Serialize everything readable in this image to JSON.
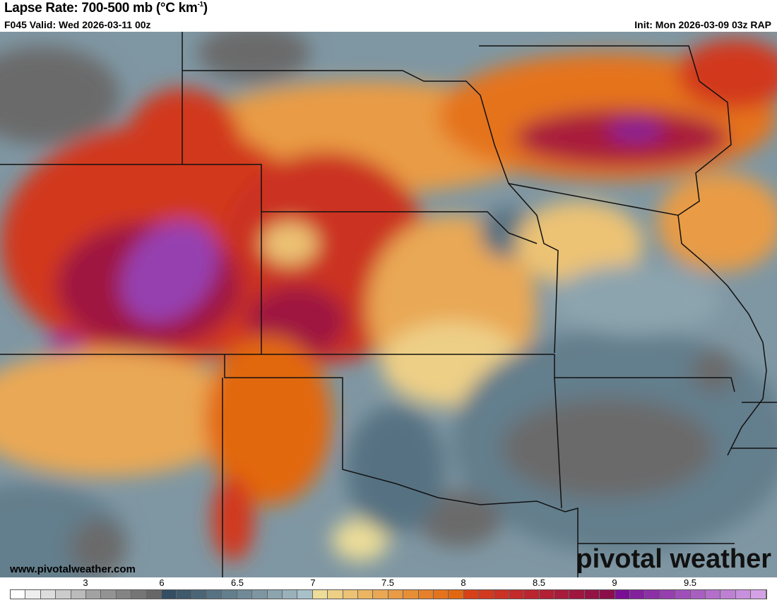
{
  "header": {
    "title": "Lapse Rate: 700-500 mb (°C km",
    "title_sup": "-1",
    "title_end": ")",
    "valid": "F045 Valid: Wed 2026-03-11 00z",
    "init": "Init: Mon 2026-03-09 03z RAP"
  },
  "footer": {
    "url": "www.pivotalweather.com",
    "logo": "pivotal weather"
  },
  "colorbar": {
    "ticks": [
      "3",
      "6",
      "6.5",
      "7",
      "7.5",
      "8",
      "8.5",
      "9",
      "9.5"
    ],
    "colors": [
      "#ffffff",
      "#eeeeee",
      "#dddddd",
      "#cccccc",
      "#bbbbbb",
      "#a2a2a2",
      "#939393",
      "#848484",
      "#757575",
      "#676767",
      "#344e63",
      "#3f596d",
      "#4b6577",
      "#577282",
      "#637e8c",
      "#708a97",
      "#7d96a2",
      "#8ca4ae",
      "#9ab1ba",
      "#a8c1c9",
      "#ecdd98",
      "#edcf86",
      "#ecc274",
      "#ebb562",
      "#eaa854",
      "#e99b45",
      "#e88e36",
      "#e6802a",
      "#e5731d",
      "#e26710",
      "#d84117",
      "#d2391e",
      "#cb3124",
      "#c42a2b",
      "#bc2430",
      "#b31f35",
      "#a91b3a",
      "#9f163f",
      "#951245",
      "#8b0e4a",
      "#7a0f95",
      "#84209e",
      "#8d30a8",
      "#963fb0",
      "#a04fba",
      "#a95fc2",
      "#b46fcb",
      "#be80d3",
      "#c890dc",
      "#d4a1e6"
    ]
  }
}
